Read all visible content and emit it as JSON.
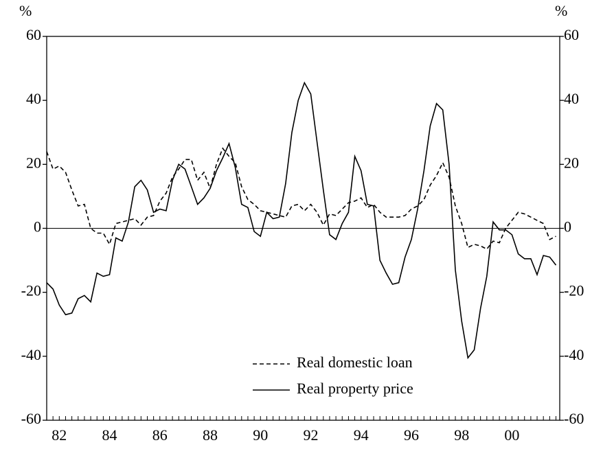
{
  "chart_data": {
    "type": "line",
    "y_label": "%",
    "y2_label": "%",
    "x": [
      1982,
      1982.25,
      1982.5,
      1982.75,
      1983,
      1983.25,
      1983.5,
      1983.75,
      1984,
      1984.25,
      1984.5,
      1984.75,
      1985,
      1985.25,
      1985.5,
      1985.75,
      1986,
      1986.25,
      1986.5,
      1986.75,
      1987,
      1987.25,
      1987.5,
      1987.75,
      1988,
      1988.25,
      1988.5,
      1988.75,
      1989,
      1989.25,
      1989.5,
      1989.75,
      1990,
      1990.25,
      1990.5,
      1990.75,
      1991,
      1991.25,
      1991.5,
      1991.75,
      1992,
      1992.25,
      1992.5,
      1992.75,
      1993,
      1993.25,
      1993.5,
      1993.75,
      1994,
      1994.25,
      1994.5,
      1994.75,
      1995,
      1995.25,
      1995.5,
      1995.75,
      1996,
      1996.25,
      1996.5,
      1996.75,
      1997,
      1997.25,
      1997.5,
      1997.75,
      1998,
      1998.25,
      1998.5,
      1998.75,
      1999,
      1999.25,
      1999.5,
      1999.75,
      2000,
      2000.25,
      2000.5,
      2000.75,
      2001,
      2001.25,
      2001.5,
      2001.75,
      2002,
      2002.25
    ],
    "series": [
      {
        "name": "Real domestic loan",
        "color": "#000000",
        "dash": true,
        "values": [
          24,
          18.5,
          19.5,
          17.5,
          12,
          7,
          7.5,
          0,
          -1.5,
          -1.5,
          -5,
          1.5,
          2,
          2.5,
          3,
          1,
          3.5,
          4,
          8.5,
          11,
          16,
          18.5,
          21.5,
          21.5,
          15,
          17.5,
          12.5,
          20,
          25,
          22.5,
          20.5,
          13,
          9,
          7.5,
          5.5,
          5,
          4.5,
          4,
          3.5,
          7,
          7.5,
          5.5,
          7.5,
          5,
          1,
          4.5,
          4,
          6,
          8,
          8.5,
          9.5,
          6.5,
          7.5,
          5,
          3.5,
          3.5,
          3.5,
          4,
          6,
          7,
          9,
          13.5,
          16.5,
          20.5,
          16,
          7,
          1.5,
          -6,
          -5,
          -5.5,
          -6.5,
          -4,
          -4.5,
          0,
          2.5,
          5,
          4.5,
          3.5,
          2.5,
          1.5,
          -3.5,
          -2.5
        ]
      },
      {
        "name": "Real property price",
        "color": "#000000",
        "dash": false,
        "values": [
          -17,
          -19,
          -24,
          -27,
          -26.5,
          -22,
          -21,
          -23,
          -14,
          -15,
          -14.5,
          -3,
          -4,
          2,
          13,
          15,
          12,
          5,
          6,
          5.5,
          15,
          20,
          18.5,
          13,
          7.5,
          9.5,
          12.5,
          18,
          22,
          26.5,
          19,
          7.5,
          6.5,
          -1,
          -2.5,
          5,
          3,
          3.5,
          14,
          30,
          40,
          45.5,
          42,
          27,
          12,
          -2,
          -3.5,
          1.5,
          5,
          22.5,
          18,
          7.5,
          7,
          -10,
          -14,
          -17.5,
          -17,
          -9,
          -3.5,
          6,
          18,
          32,
          39,
          37,
          20,
          -13,
          -29,
          -40.5,
          -38,
          -25,
          -15,
          2,
          -0.5,
          -0.5,
          -2,
          -8,
          -9.5,
          -9.5,
          -14.5,
          -8.5,
          -9,
          -11.5
        ]
      }
    ],
    "xlim": [
      1982,
      2002.4
    ],
    "xticks": [
      {
        "value": 1982.5,
        "label": "82"
      },
      {
        "value": 1984.5,
        "label": "84"
      },
      {
        "value": 1986.5,
        "label": "86"
      },
      {
        "value": 1988.5,
        "label": "88"
      },
      {
        "value": 1990.5,
        "label": "90"
      },
      {
        "value": 1992.5,
        "label": "92"
      },
      {
        "value": 1994.5,
        "label": "94"
      },
      {
        "value": 1996.5,
        "label": "96"
      },
      {
        "value": 1998.5,
        "label": "98"
      },
      {
        "value": 2000.5,
        "label": "00"
      }
    ],
    "ylim": [
      -60,
      60
    ],
    "yticks": [
      -60,
      -40,
      -20,
      0,
      20,
      40,
      60
    ],
    "y2lim": [
      -60,
      60
    ],
    "y2ticks": [
      -60,
      -40,
      -20,
      0,
      20,
      40,
      60
    ],
    "zero_line": true
  }
}
